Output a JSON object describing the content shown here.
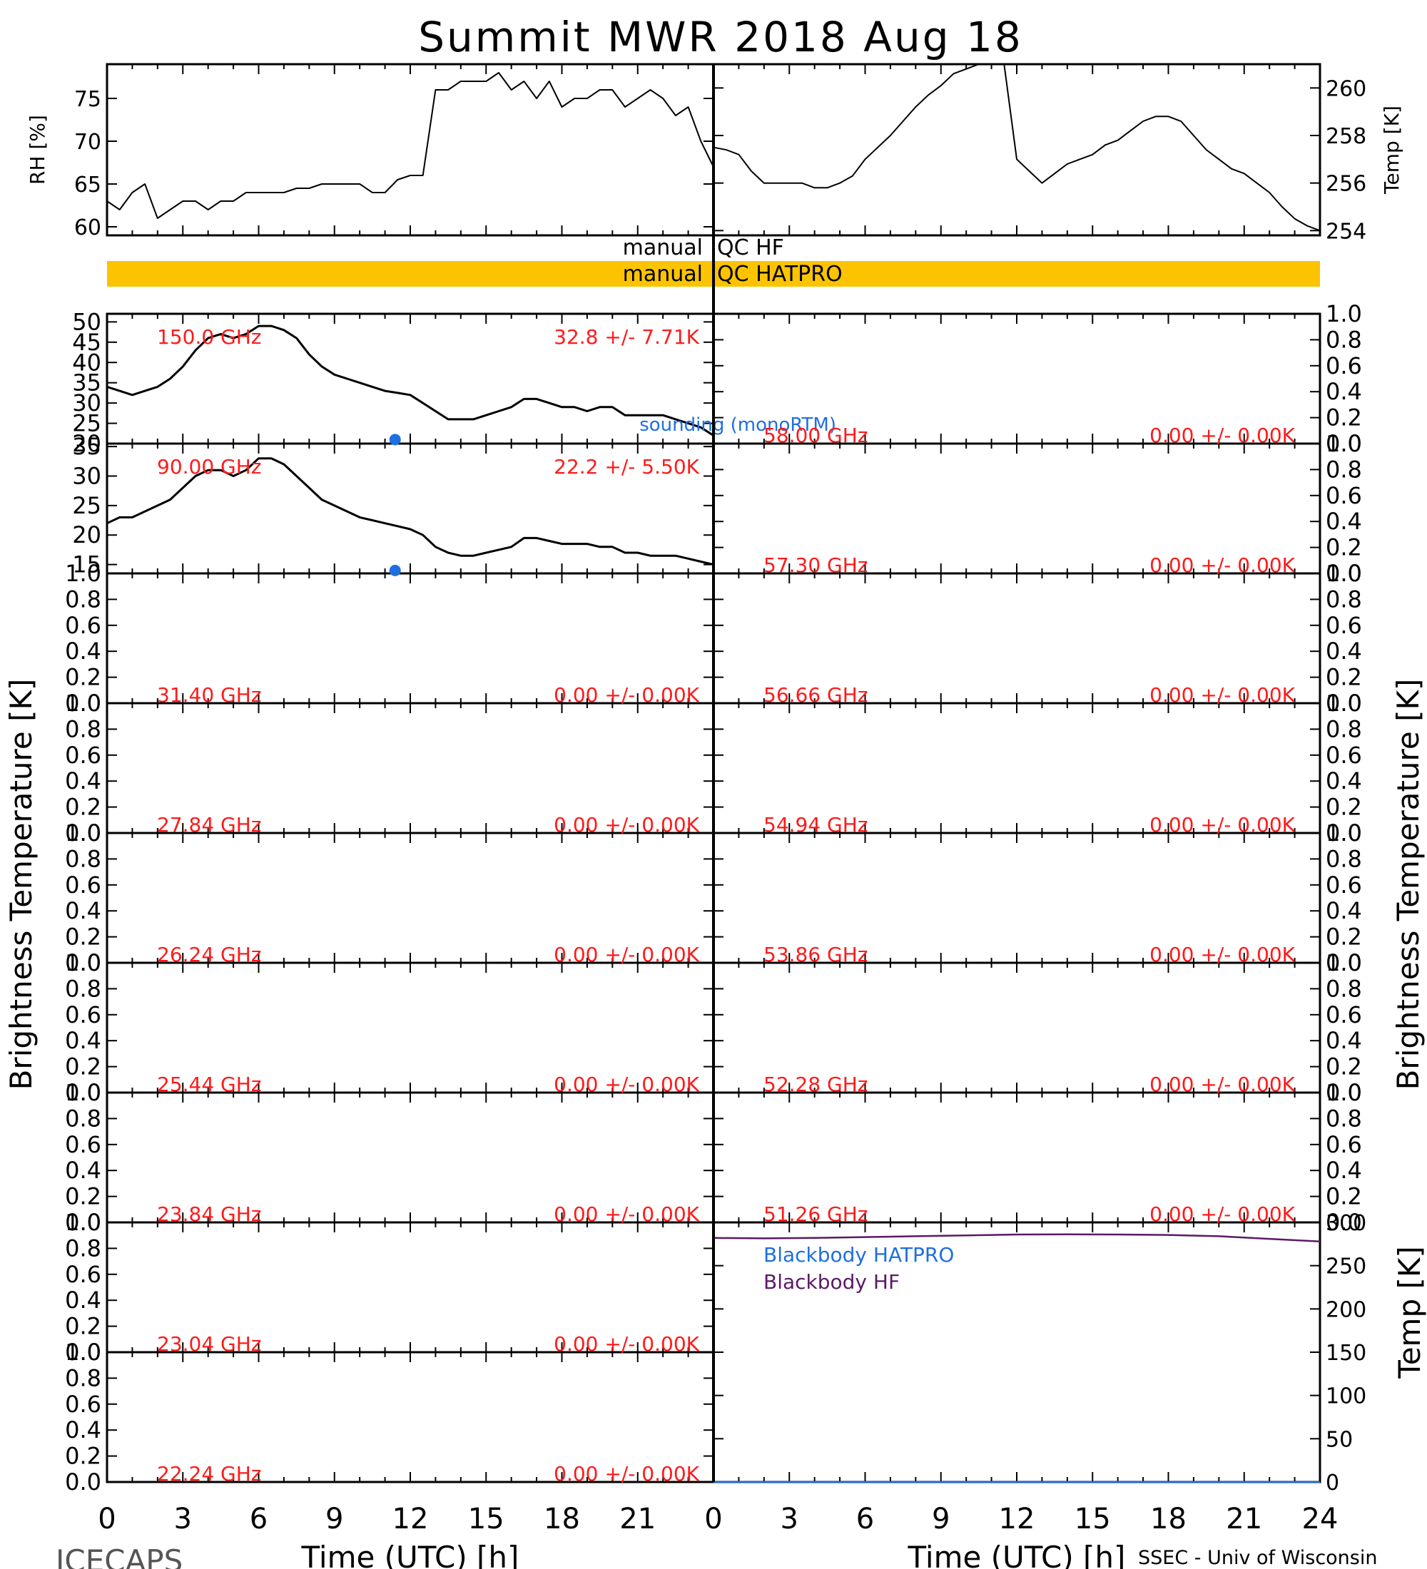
{
  "title": "Summit MWR 2018 Aug 18",
  "footer": {
    "left": "ICECAPS",
    "right": "SSEC - Univ of Wisconsin"
  },
  "colors": {
    "data_line": "#000000",
    "channel_label": "#ff1a1a",
    "sounding": "#1f6fe0",
    "blackbody_hatpro": "#1f6fe0",
    "blackbody_hf": "#5a1a66",
    "qc_bar": "#fcc400"
  },
  "qc": {
    "label_left": "manual",
    "hf": "QC HF",
    "hatpro": "QC HATPRO"
  },
  "chart_data": [
    {
      "id": "rh",
      "type": "line",
      "ylabel": "RH [%]",
      "x": [
        0,
        0.5,
        1,
        1.5,
        2,
        2.5,
        3,
        3.5,
        4,
        4.5,
        5,
        5.5,
        6,
        6.5,
        7,
        7.5,
        8,
        8.5,
        9,
        9.5,
        10,
        10.5,
        11,
        11.5,
        12,
        12.5,
        13,
        13.5,
        14,
        14.5,
        15,
        15.5,
        16,
        16.5,
        17,
        17.5,
        18,
        18.5,
        19,
        19.5,
        20,
        20.5,
        21,
        21.5,
        22,
        22.5,
        23,
        23.5,
        24
      ],
      "y": [
        63,
        62,
        64,
        65,
        61,
        62,
        63,
        63,
        62,
        63,
        63,
        64,
        64,
        64,
        64,
        64.5,
        64.5,
        65,
        65,
        65,
        65,
        64,
        64,
        65.5,
        66,
        66,
        76,
        76,
        77,
        77,
        77,
        78,
        76,
        77,
        75,
        77,
        74,
        75,
        75,
        76,
        76,
        74,
        75,
        76,
        75,
        73,
        74,
        70,
        67
      ],
      "ylim": [
        59,
        79
      ],
      "yticks": [
        60,
        65,
        70,
        75
      ],
      "ytick_labels": [
        "60",
        "65",
        "70",
        "75"
      ]
    },
    {
      "id": "temp",
      "type": "line",
      "ylabel": "Temp [K]",
      "x": [
        0,
        0.5,
        1,
        1.5,
        2,
        2.5,
        3,
        3.5,
        4,
        4.5,
        5,
        5.5,
        6,
        6.5,
        7,
        7.5,
        8,
        8.5,
        9,
        9.5,
        10,
        10.5,
        11,
        11.5,
        12,
        12.5,
        13,
        13.5,
        14,
        14.5,
        15,
        15.5,
        16,
        16.5,
        17,
        17.5,
        18,
        18.5,
        19,
        19.5,
        20,
        20.5,
        21,
        21.5,
        22,
        22.5,
        23,
        23.5,
        24
      ],
      "y": [
        257.5,
        257.4,
        257.2,
        256.5,
        256,
        256,
        256,
        256,
        255.8,
        255.8,
        256,
        256.3,
        257,
        257.5,
        258,
        258.6,
        259.2,
        259.7,
        260.1,
        260.6,
        260.8,
        261,
        261,
        261,
        257,
        256.5,
        256,
        256.4,
        256.8,
        257,
        257.2,
        257.6,
        257.8,
        258.2,
        258.6,
        258.8,
        258.8,
        258.6,
        258,
        257.4,
        257,
        256.6,
        256.4,
        256,
        255.6,
        255,
        254.5,
        254.2,
        254
      ],
      "ylim": [
        253.8,
        261
      ],
      "yticks": [
        254,
        256,
        258,
        260
      ],
      "ytick_labels": [
        "254",
        "256",
        "258",
        "260"
      ]
    },
    {
      "id": "tb-150",
      "type": "line",
      "channel": "150.0 GHz",
      "stat": "32.8 +/-  7.71K",
      "x": [
        0,
        0.5,
        1,
        1.5,
        2,
        2.5,
        3,
        3.5,
        4,
        4.5,
        5,
        5.5,
        6,
        6.5,
        7,
        7.5,
        8,
        8.5,
        9,
        9.5,
        10,
        10.5,
        11,
        11.5,
        12,
        12.5,
        13,
        13.5,
        14,
        14.5,
        15,
        15.5,
        16,
        16.5,
        17,
        17.5,
        18,
        18.5,
        19,
        19.5,
        20,
        20.5,
        21,
        21.5,
        22,
        22.5,
        23,
        23.5,
        24
      ],
      "y": [
        34,
        33,
        32,
        33,
        34,
        36,
        39,
        43,
        46,
        47,
        46,
        47,
        49,
        49,
        48,
        46,
        42,
        39,
        37,
        36,
        35,
        34,
        33,
        32.5,
        32,
        30,
        28,
        26,
        26,
        26,
        27,
        28,
        29,
        31,
        31,
        30,
        29,
        29,
        28,
        29,
        29,
        27,
        27,
        27,
        27,
        26,
        25,
        24,
        22
      ],
      "ylim": [
        20,
        52
      ],
      "yticks": [
        20,
        25,
        30,
        35,
        40,
        45,
        50
      ],
      "ytick_labels": [
        "20",
        "25",
        "30",
        "35",
        "40",
        "45",
        "50"
      ],
      "sounding": {
        "x": [
          11.4
        ],
        "y": [
          21
        ],
        "label": "sounding (monoRTM)"
      }
    },
    {
      "id": "tb-90",
      "type": "line",
      "channel": "90.00 GHz",
      "stat": "22.2 +/-  5.50K",
      "x": [
        0,
        0.5,
        1,
        1.5,
        2,
        2.5,
        3,
        3.5,
        4,
        4.5,
        5,
        5.5,
        6,
        6.5,
        7,
        7.5,
        8,
        8.5,
        9,
        9.5,
        10,
        10.5,
        11,
        11.5,
        12,
        12.5,
        13,
        13.5,
        14,
        14.5,
        15,
        15.5,
        16,
        16.5,
        17,
        17.5,
        18,
        18.5,
        19,
        19.5,
        20,
        20.5,
        21,
        21.5,
        22,
        22.5,
        23,
        23.5,
        24
      ],
      "y": [
        22,
        23,
        23,
        24,
        25,
        26,
        28,
        30,
        31,
        31,
        30,
        31,
        33,
        33,
        32,
        30,
        28,
        26,
        25,
        24,
        23,
        22.5,
        22,
        21.5,
        21,
        20,
        18,
        17,
        16.5,
        16.5,
        17,
        17.5,
        18,
        19.5,
        19.5,
        19,
        18.5,
        18.5,
        18.5,
        18,
        18,
        17,
        17,
        16.5,
        16.5,
        16.5,
        16,
        15.5,
        15
      ],
      "ylim": [
        13.5,
        35.5
      ],
      "yticks": [
        15,
        20,
        25,
        30,
        35
      ],
      "ytick_labels": [
        "15",
        "20",
        "25",
        "30",
        "35"
      ],
      "sounding": {
        "x": [
          11.4
        ],
        "y": [
          14
        ],
        "label": ""
      }
    },
    {
      "id": "tb-31",
      "type": "line",
      "channel": "31.40 GHz",
      "stat": "0.00 +/-  0.00K",
      "x": [],
      "y": [],
      "ylim": [
        0,
        1
      ],
      "yticks": [
        0,
        0.2,
        0.4,
        0.6,
        0.8,
        1.0
      ],
      "ytick_labels": [
        "0.0",
        "0.2",
        "0.4",
        "0.6",
        "0.8",
        "1.0"
      ]
    },
    {
      "id": "tb-27",
      "type": "line",
      "channel": "27.84 GHz",
      "stat": "0.00 +/-  0.00K",
      "x": [],
      "y": [],
      "ylim": [
        0,
        1
      ],
      "yticks": [
        0,
        0.2,
        0.4,
        0.6,
        0.8,
        1.0
      ],
      "ytick_labels": [
        "0.0",
        "0.2",
        "0.4",
        "0.6",
        "0.8",
        "1.0"
      ]
    },
    {
      "id": "tb-26",
      "type": "line",
      "channel": "26.24 GHz",
      "stat": "0.00 +/-  0.00K",
      "x": [],
      "y": [],
      "ylim": [
        0,
        1
      ],
      "yticks": [
        0,
        0.2,
        0.4,
        0.6,
        0.8,
        1.0
      ],
      "ytick_labels": [
        "0.0",
        "0.2",
        "0.4",
        "0.6",
        "0.8",
        "1.0"
      ]
    },
    {
      "id": "tb-25",
      "type": "line",
      "channel": "25.44 GHz",
      "stat": "0.00 +/-  0.00K",
      "x": [],
      "y": [],
      "ylim": [
        0,
        1
      ],
      "yticks": [
        0,
        0.2,
        0.4,
        0.6,
        0.8,
        1.0
      ],
      "ytick_labels": [
        "0.0",
        "0.2",
        "0.4",
        "0.6",
        "0.8",
        "1.0"
      ]
    },
    {
      "id": "tb-23-84",
      "type": "line",
      "channel": "23.84 GHz",
      "stat": "0.00 +/-  0.00K",
      "x": [],
      "y": [],
      "ylim": [
        0,
        1
      ],
      "yticks": [
        0,
        0.2,
        0.4,
        0.6,
        0.8,
        1.0
      ],
      "ytick_labels": [
        "0.0",
        "0.2",
        "0.4",
        "0.6",
        "0.8",
        "1.0"
      ]
    },
    {
      "id": "tb-23-04",
      "type": "line",
      "channel": "23.04 GHz",
      "stat": "0.00 +/-  0.00K",
      "x": [],
      "y": [],
      "ylim": [
        0,
        1
      ],
      "yticks": [
        0,
        0.2,
        0.4,
        0.6,
        0.8,
        1.0
      ],
      "ytick_labels": [
        "0.0",
        "0.2",
        "0.4",
        "0.6",
        "0.8",
        "1.0"
      ]
    },
    {
      "id": "tb-22",
      "type": "line",
      "channel": "22.24 GHz",
      "stat": "0.00 +/-  0.00K",
      "x": [],
      "y": [],
      "ylim": [
        0,
        1
      ],
      "yticks": [
        0,
        0.2,
        0.4,
        0.6,
        0.8,
        1.0
      ],
      "ytick_labels": [
        "0.0",
        "0.2",
        "0.4",
        "0.6",
        "0.8",
        "1.0"
      ]
    },
    {
      "id": "tb-58-00",
      "type": "line",
      "channel": "58.00 GHz",
      "stat": "0.00 +/-  0.00K",
      "x": [],
      "y": [],
      "ylim": [
        0,
        1
      ],
      "yticks": [
        0,
        0.2,
        0.4,
        0.6,
        0.8,
        1.0
      ],
      "ytick_labels": [
        "0.0",
        "0.2",
        "0.4",
        "0.6",
        "0.8",
        "1.0"
      ]
    },
    {
      "id": "tb-57-30",
      "type": "line",
      "channel": "57.30 GHz",
      "stat": "0.00 +/-  0.00K",
      "x": [],
      "y": [],
      "ylim": [
        0,
        1
      ],
      "yticks": [
        0,
        0.2,
        0.4,
        0.6,
        0.8,
        1.0
      ],
      "ytick_labels": [
        "0.0",
        "0.2",
        "0.4",
        "0.6",
        "0.8",
        "1.0"
      ]
    },
    {
      "id": "tb-56-66",
      "type": "line",
      "channel": "56.66 GHz",
      "stat": "0.00 +/-  0.00K",
      "x": [],
      "y": [],
      "ylim": [
        0,
        1
      ],
      "yticks": [
        0,
        0.2,
        0.4,
        0.6,
        0.8,
        1.0
      ],
      "ytick_labels": [
        "0.0",
        "0.2",
        "0.4",
        "0.6",
        "0.8",
        "1.0"
      ]
    },
    {
      "id": "tb-54-94",
      "type": "line",
      "channel": "54.94 GHz",
      "stat": "0.00 +/-  0.00K",
      "x": [],
      "y": [],
      "ylim": [
        0,
        1
      ],
      "yticks": [
        0,
        0.2,
        0.4,
        0.6,
        0.8,
        1.0
      ],
      "ytick_labels": [
        "0.0",
        "0.2",
        "0.4",
        "0.6",
        "0.8",
        "1.0"
      ]
    },
    {
      "id": "tb-53-86",
      "type": "line",
      "channel": "53.86 GHz",
      "stat": "0.00 +/-  0.00K",
      "x": [],
      "y": [],
      "ylim": [
        0,
        1
      ],
      "yticks": [
        0,
        0.2,
        0.4,
        0.6,
        0.8,
        1.0
      ],
      "ytick_labels": [
        "0.0",
        "0.2",
        "0.4",
        "0.6",
        "0.8",
        "1.0"
      ]
    },
    {
      "id": "tb-52-28",
      "type": "line",
      "channel": "52.28 GHz",
      "stat": "0.00 +/-  0.00K",
      "x": [],
      "y": [],
      "ylim": [
        0,
        1
      ],
      "yticks": [
        0,
        0.2,
        0.4,
        0.6,
        0.8,
        1.0
      ],
      "ytick_labels": [
        "0.0",
        "0.2",
        "0.4",
        "0.6",
        "0.8",
        "1.0"
      ]
    },
    {
      "id": "tb-51-26",
      "type": "line",
      "channel": "51.26 GHz",
      "stat": "0.00 +/-  0.00K",
      "x": [],
      "y": [],
      "ylim": [
        0,
        1
      ],
      "yticks": [
        0,
        0.2,
        0.4,
        0.6,
        0.8,
        1.0
      ],
      "ytick_labels": [
        "0.0",
        "0.2",
        "0.4",
        "0.6",
        "0.8",
        "1.0"
      ]
    },
    {
      "id": "blackbody",
      "type": "line",
      "ylabel": "Temp [K]",
      "ylim": [
        0,
        300
      ],
      "yticks": [
        0,
        50,
        100,
        150,
        200,
        250,
        300
      ],
      "ytick_labels": [
        "0",
        "50",
        "100",
        "150",
        "200",
        "250",
        "300"
      ],
      "series": [
        {
          "name": "Blackbody HATPRO",
          "x": [
            0,
            24
          ],
          "y": [
            0,
            0
          ]
        },
        {
          "name": "Blackbody HF",
          "x": [
            0,
            2,
            4,
            6,
            8,
            10,
            12,
            14,
            16,
            18,
            20,
            22,
            24
          ],
          "y": [
            282,
            281.5,
            282,
            283,
            284,
            285,
            286,
            286.2,
            286,
            285.5,
            284,
            281,
            278
          ]
        }
      ]
    }
  ],
  "axes": {
    "xlabel": "Time (UTC) [h]",
    "xticks": [
      0,
      3,
      6,
      9,
      12,
      15,
      18,
      21,
      24
    ],
    "xtick_labels_left": [
      "0",
      "3",
      "6",
      "9",
      "12",
      "15",
      "18",
      "21"
    ],
    "xtick_labels_right": [
      "0",
      "3",
      "6",
      "9",
      "12",
      "15",
      "18",
      "21",
      "24"
    ],
    "tb_ylabel": "Brightness Temperature [K]"
  }
}
